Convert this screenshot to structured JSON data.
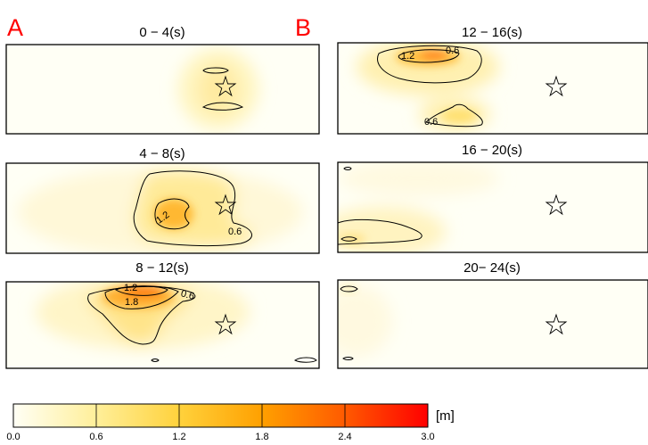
{
  "figure": {
    "panel_letters": [
      "A",
      "B"
    ],
    "colorbar": {
      "unit": "[m]",
      "ticks": [
        "0.0",
        "0.6",
        "1.2",
        "1.8",
        "2.4",
        "3.0"
      ],
      "min": 0,
      "max": 3,
      "colors": [
        "#fffff5",
        "#ffef9a",
        "#ffd23c",
        "#ffa000",
        "#ff5a00",
        "#ff0000"
      ]
    }
  },
  "chart_data": {
    "type": "heatmap",
    "value_range": [
      0,
      3
    ],
    "unit": "[m]",
    "panels": [
      {
        "title": "0 − 4(s)",
        "column": "A",
        "peak": 0.5,
        "contours": [
          {
            "level": 0.6,
            "label": ""
          }
        ]
      },
      {
        "title": "4 − 8(s)",
        "column": "A",
        "peak": 1.5,
        "contours": [
          {
            "level": 0.6,
            "label": "0.6"
          },
          {
            "level": 1.2,
            "label": "1.2"
          }
        ]
      },
      {
        "title": "8 − 12(s)",
        "column": "A",
        "peak": 2.1,
        "contours": [
          {
            "level": 0.6,
            "label": "0.6"
          },
          {
            "level": 1.2,
            "label": "1.2"
          },
          {
            "level": 1.8,
            "label": "1.8"
          }
        ]
      },
      {
        "title": "12 − 16(s)",
        "column": "B",
        "peak": 2.0,
        "contours": [
          {
            "level": 0.6,
            "label": "0.6"
          },
          {
            "level": 1.2,
            "label": "1.2"
          }
        ]
      },
      {
        "title": "16 − 20(s)",
        "column": "B",
        "peak": 0.8,
        "contours": [
          {
            "level": 0.6,
            "label": ""
          }
        ]
      },
      {
        "title": "20− 24(s)",
        "column": "B",
        "peak": 0.6,
        "contours": [
          {
            "level": 0.6,
            "label": ""
          }
        ]
      }
    ]
  }
}
